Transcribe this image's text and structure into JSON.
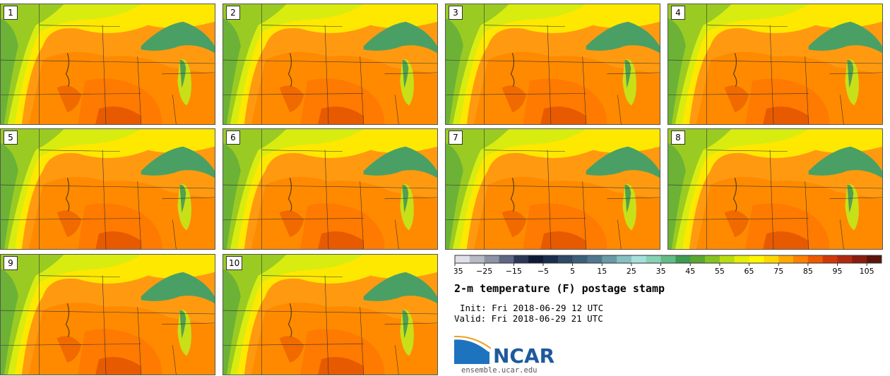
{
  "panels": [
    {
      "label": "1"
    },
    {
      "label": "2"
    },
    {
      "label": "3"
    },
    {
      "label": "4"
    },
    {
      "label": "5"
    },
    {
      "label": "6"
    },
    {
      "label": "7"
    },
    {
      "label": "8"
    },
    {
      "label": "9"
    },
    {
      "label": "10"
    }
  ],
  "chart_data": {
    "type": "heatmap",
    "title": "2-m temperature (F) postage stamp",
    "init_time": "Init: Fri 2018-06-29 12 UTC",
    "valid_time": "Valid: Fri 2018-06-29 21 UTC",
    "colorbar": {
      "min": -35,
      "max": 120,
      "step": 5,
      "ticks": [
        -35,
        -25,
        -15,
        -5,
        5,
        15,
        25,
        35,
        45,
        55,
        65,
        75,
        85,
        95,
        105,
        115
      ],
      "tick_labels": [
        "−35",
        "−25",
        "−15",
        "−5",
        "5",
        "15",
        "25",
        "35",
        "45",
        "55",
        "65",
        "75",
        "85",
        "95",
        "105",
        "115"
      ],
      "colors": [
        "#e0e0e8",
        "#b8bac6",
        "#8e93a6",
        "#5e6882",
        "#2a3856",
        "#0d1a36",
        "#1a2d4a",
        "#2e4a64",
        "#3e5f78",
        "#50788c",
        "#6a9aa6",
        "#88bfc2",
        "#a6e0da",
        "#86d2b4",
        "#62bc88",
        "#3e9a50",
        "#5aa832",
        "#86c222",
        "#b8dc10",
        "#e4ee06",
        "#fff600",
        "#ffd800",
        "#ffa800",
        "#ff8000",
        "#ee5a00",
        "#d03a0a",
        "#b02a12",
        "#8a1c10",
        "#5a140c"
      ]
    },
    "members": 10,
    "region": "Northern Plains / Upper Midwest, Great Lakes"
  },
  "branding": {
    "logo_text": "NCAR",
    "site": "ensemble.ucar.edu"
  }
}
